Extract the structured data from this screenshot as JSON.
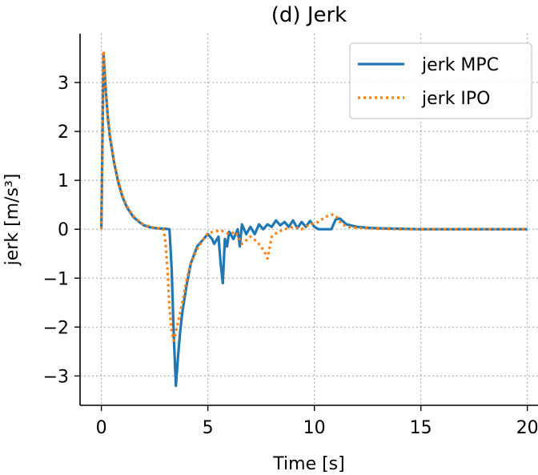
{
  "chart_data": {
    "type": "line",
    "title": "(d) Jerk",
    "xlabel": "Time  [s]",
    "ylabel": "jerk  [m/s³]",
    "xlim": [
      -1,
      20.5
    ],
    "ylim": [
      -3.6,
      4.0
    ],
    "xticks": [
      0,
      5,
      10,
      15,
      20
    ],
    "yticks": [
      3,
      2,
      1,
      0,
      -1,
      -2,
      -3
    ],
    "xtick_labels": [
      "0",
      "5",
      "10",
      "15",
      "20"
    ],
    "ytick_labels": [
      "3",
      "2",
      "1",
      "0",
      "−1",
      "−2",
      "−3"
    ],
    "grid": true,
    "legend_position": "upper-right",
    "series": [
      {
        "name": "jerk MPC",
        "color": "#1f77b4",
        "style": "solid",
        "x": [
          0,
          0.1,
          0.2,
          0.3,
          0.4,
          0.6,
          0.8,
          1.0,
          1.2,
          1.5,
          1.8,
          2.0,
          2.3,
          2.6,
          3.0,
          3.2,
          3.3,
          3.4,
          3.5,
          3.6,
          3.7,
          3.8,
          4.0,
          4.2,
          4.5,
          4.8,
          5.0,
          5.2,
          5.3,
          5.5,
          5.6,
          5.7,
          5.8,
          5.9,
          6.0,
          6.2,
          6.4,
          6.5,
          6.6,
          6.8,
          7.0,
          7.2,
          7.4,
          7.6,
          7.8,
          8.0,
          8.2,
          8.4,
          8.6,
          8.8,
          9.0,
          9.2,
          9.4,
          9.6,
          9.8,
          10.0,
          10.2,
          10.5,
          10.8,
          11.0,
          11.2,
          11.5,
          12.0,
          12.5,
          13.0,
          14.0,
          15.0,
          16.0,
          17.0,
          18.0,
          19.0,
          20.0
        ],
        "y": [
          0,
          3.6,
          2.9,
          2.3,
          1.9,
          1.35,
          0.95,
          0.65,
          0.45,
          0.25,
          0.14,
          0.08,
          0.04,
          0.02,
          0.01,
          0.0,
          -0.8,
          -2.2,
          -3.2,
          -2.6,
          -2.1,
          -1.7,
          -1.15,
          -0.7,
          -0.35,
          -0.2,
          -0.1,
          -0.2,
          -0.3,
          -0.15,
          -0.7,
          -1.1,
          -0.2,
          -0.35,
          -0.05,
          -0.2,
          0.0,
          -0.35,
          0.1,
          -0.1,
          0.05,
          -0.1,
          0.1,
          0.0,
          0.1,
          0.05,
          0.18,
          0.08,
          0.15,
          0.05,
          0.18,
          0.02,
          0.15,
          0.05,
          0.17,
          0.05,
          0.0,
          0.0,
          0.0,
          0.2,
          0.22,
          0.1,
          0.05,
          0.03,
          0.02,
          0.01,
          0.0,
          0.0,
          0.0,
          0.0,
          0.0,
          0.0
        ]
      },
      {
        "name": "jerk IPO",
        "color": "#ff7f0e",
        "style": "dotted",
        "x": [
          0,
          0.1,
          0.2,
          0.3,
          0.4,
          0.6,
          0.8,
          1.0,
          1.2,
          1.5,
          1.8,
          2.0,
          2.3,
          2.6,
          2.9,
          3.0,
          3.1,
          3.2,
          3.3,
          3.4,
          3.6,
          3.8,
          4.0,
          4.2,
          4.5,
          4.8,
          5.0,
          5.3,
          5.6,
          6.0,
          6.3,
          6.6,
          7.0,
          7.3,
          7.5,
          7.7,
          7.8,
          8.0,
          8.3,
          8.6,
          9.0,
          9.4,
          9.8,
          10.2,
          10.5,
          10.8,
          11.0,
          11.3,
          11.6,
          12.0,
          12.5,
          13.0,
          14.0,
          15.0,
          16.0,
          17.0,
          18.0,
          19.0,
          20.0
        ],
        "y": [
          0,
          3.65,
          2.95,
          2.35,
          1.95,
          1.38,
          0.98,
          0.68,
          0.47,
          0.27,
          0.15,
          0.09,
          0.05,
          0.02,
          0.01,
          -0.2,
          -0.8,
          -1.6,
          -2.1,
          -2.28,
          -1.9,
          -1.5,
          -1.05,
          -0.7,
          -0.4,
          -0.2,
          -0.08,
          -0.05,
          -0.02,
          -0.1,
          -0.05,
          -0.3,
          -0.15,
          -0.25,
          -0.35,
          -0.5,
          -0.6,
          -0.15,
          -0.05,
          0.0,
          0.05,
          0.0,
          0.1,
          0.15,
          0.25,
          0.3,
          0.28,
          0.1,
          0.05,
          0.03,
          0.02,
          0.01,
          0.0,
          0.0,
          0.0,
          0.0,
          0.0,
          0.0,
          0.0
        ]
      }
    ]
  }
}
